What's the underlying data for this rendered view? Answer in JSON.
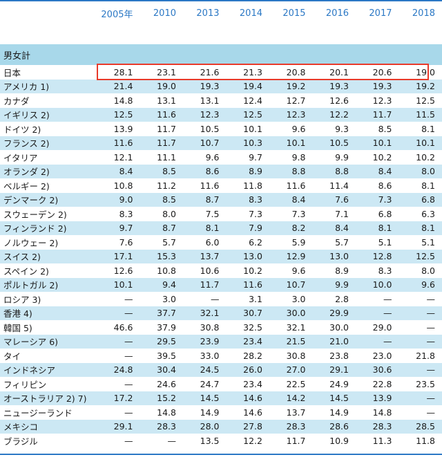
{
  "columns": [
    "2005年",
    "2010",
    "2013",
    "2014",
    "2015",
    "2016",
    "2017",
    "2018"
  ],
  "section_label": "男女計",
  "highlight_color": "#e83a2a",
  "rows": [
    {
      "label": "日本",
      "values": [
        "28.1",
        "23.1",
        "21.6",
        "21.3",
        "20.8",
        "20.1",
        "20.6",
        "19.0"
      ]
    },
    {
      "label": "アメリカ 1)",
      "values": [
        "21.4",
        "19.0",
        "19.3",
        "19.4",
        "19.2",
        "19.3",
        "19.3",
        "19.2"
      ]
    },
    {
      "label": "カナダ",
      "values": [
        "14.8",
        "13.1",
        "13.1",
        "12.4",
        "12.7",
        "12.6",
        "12.3",
        "12.5"
      ]
    },
    {
      "label": "イギリス 2)",
      "values": [
        "12.5",
        "11.6",
        "12.3",
        "12.5",
        "12.3",
        "12.2",
        "11.7",
        "11.5"
      ]
    },
    {
      "label": "ドイツ 2)",
      "values": [
        "13.9",
        "11.7",
        "10.5",
        "10.1",
        "9.6",
        "9.3",
        "8.5",
        "8.1"
      ]
    },
    {
      "label": "フランス 2)",
      "values": [
        "11.6",
        "11.7",
        "10.7",
        "10.3",
        "10.1",
        "10.5",
        "10.1",
        "10.1"
      ]
    },
    {
      "label": "イタリア",
      "values": [
        "12.1",
        "11.1",
        "9.6",
        "9.7",
        "9.8",
        "9.9",
        "10.2",
        "10.2"
      ]
    },
    {
      "label": "オランダ 2)",
      "values": [
        "8.4",
        "8.5",
        "8.6",
        "8.9",
        "8.8",
        "8.8",
        "8.4",
        "8.0"
      ]
    },
    {
      "label": "ベルギー 2)",
      "values": [
        "10.8",
        "11.2",
        "11.6",
        "11.8",
        "11.6",
        "11.4",
        "8.6",
        "8.1"
      ]
    },
    {
      "label": "デンマーク 2)",
      "values": [
        "9.0",
        "8.5",
        "8.7",
        "8.3",
        "8.4",
        "7.6",
        "7.3",
        "6.8"
      ]
    },
    {
      "label": "スウェーデン 2)",
      "values": [
        "8.3",
        "8.0",
        "7.5",
        "7.3",
        "7.3",
        "7.1",
        "6.8",
        "6.3"
      ]
    },
    {
      "label": "フィンランド 2)",
      "values": [
        "9.7",
        "8.7",
        "8.1",
        "7.9",
        "8.2",
        "8.4",
        "8.1",
        "8.1"
      ]
    },
    {
      "label": "ノルウェー 2)",
      "values": [
        "7.6",
        "5.7",
        "6.0",
        "6.2",
        "5.9",
        "5.7",
        "5.1",
        "5.1"
      ]
    },
    {
      "label": "スイス 2)",
      "values": [
        "17.1",
        "15.3",
        "13.7",
        "13.0",
        "12.9",
        "13.0",
        "12.8",
        "12.5"
      ]
    },
    {
      "label": "スペイン 2)",
      "values": [
        "12.6",
        "10.8",
        "10.6",
        "10.2",
        "9.6",
        "8.9",
        "8.3",
        "8.0"
      ]
    },
    {
      "label": "ポルトガル 2)",
      "values": [
        "10.1",
        "9.4",
        "11.7",
        "11.6",
        "10.7",
        "9.9",
        "10.0",
        "9.6"
      ]
    },
    {
      "label": "ロシア 3)",
      "values": [
        "—",
        "3.0",
        "—",
        "3.1",
        "3.0",
        "2.8",
        "—",
        "—"
      ]
    },
    {
      "label": "香港 4)",
      "values": [
        "—",
        "37.7",
        "32.1",
        "30.7",
        "30.0",
        "29.9",
        "—",
        "—"
      ]
    },
    {
      "label": "韓国 5)",
      "values": [
        "46.6",
        "37.9",
        "30.8",
        "32.5",
        "32.1",
        "30.0",
        "29.0",
        "—"
      ]
    },
    {
      "label": "マレーシア 6)",
      "values": [
        "—",
        "29.5",
        "23.9",
        "23.4",
        "21.5",
        "21.0",
        "—",
        "—"
      ]
    },
    {
      "label": "タイ",
      "values": [
        "—",
        "39.5",
        "33.0",
        "28.2",
        "30.8",
        "23.8",
        "23.0",
        "21.8"
      ]
    },
    {
      "label": "インドネシア",
      "values": [
        "24.8",
        "30.4",
        "24.5",
        "26.0",
        "27.0",
        "29.1",
        "30.6",
        "—"
      ]
    },
    {
      "label": "フィリピン",
      "values": [
        "—",
        "24.6",
        "24.7",
        "23.4",
        "22.5",
        "24.9",
        "22.8",
        "23.5"
      ]
    },
    {
      "label": "オーストラリア 2) 7)",
      "values": [
        "17.2",
        "15.2",
        "14.5",
        "14.6",
        "14.2",
        "14.5",
        "13.9",
        "—"
      ]
    },
    {
      "label": "ニュージーランド",
      "values": [
        "—",
        "14.8",
        "14.9",
        "14.6",
        "13.7",
        "14.9",
        "14.8",
        "—"
      ]
    },
    {
      "label": "メキシコ",
      "values": [
        "29.1",
        "28.3",
        "28.0",
        "27.8",
        "28.3",
        "28.6",
        "28.3",
        "28.5"
      ]
    },
    {
      "label": "ブラジル",
      "values": [
        "—",
        "—",
        "13.5",
        "12.2",
        "11.7",
        "10.9",
        "11.3",
        "11.8"
      ]
    }
  ]
}
